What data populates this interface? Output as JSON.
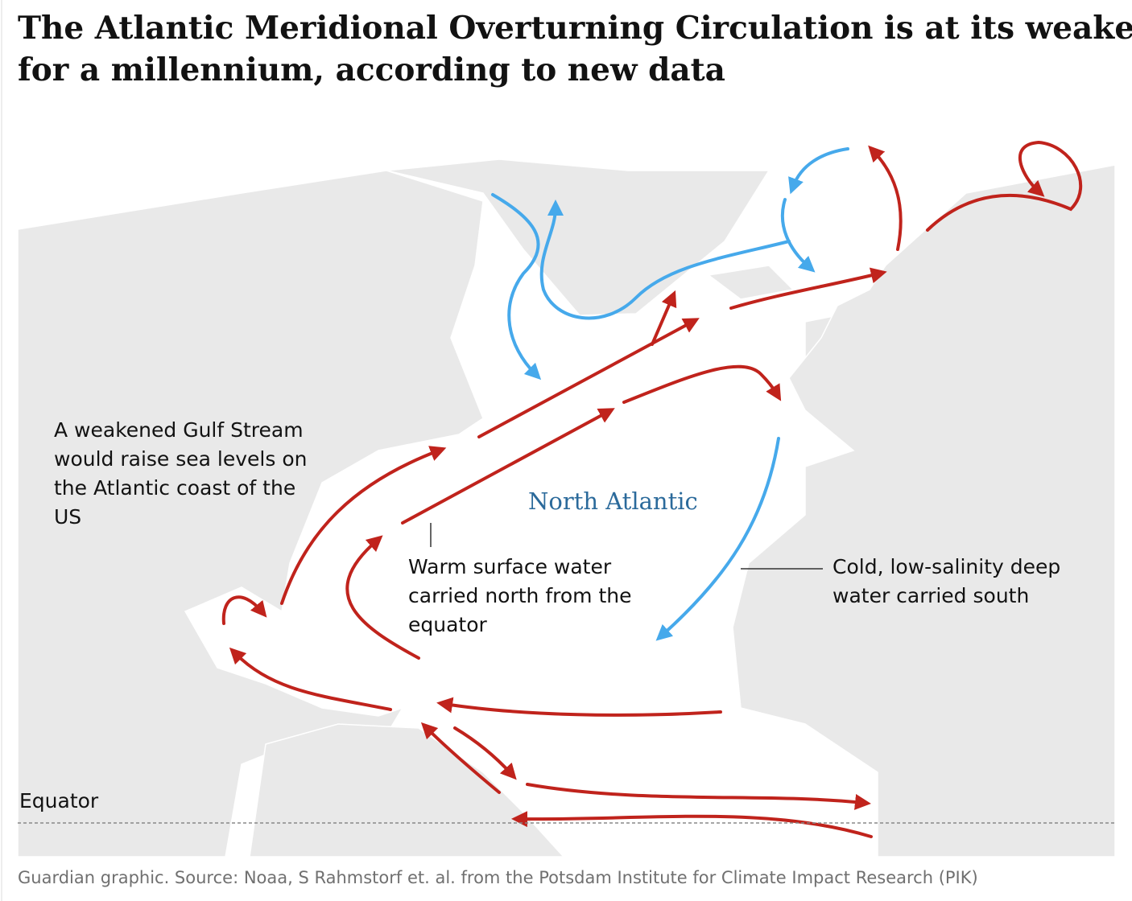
{
  "title": [
    "The Atlantic Meridional Overturning Circulation is at its weakest",
    "for a millennium, according to new data"
  ],
  "ocean_label": "North Atlantic",
  "equator_label": "Equator",
  "annotations": [
    {
      "lines": [
        "A weakened Gulf Stream",
        "would raise sea levels on",
        "the Atlantic coast of the",
        "US"
      ]
    },
    {
      "lines": [
        "Warm surface water",
        "carried north from the",
        "equator"
      ]
    },
    {
      "lines": [
        "Cold, low-salinity deep",
        "water carried south"
      ]
    }
  ],
  "source": "Guardian graphic. Source: Noaa, S Rahmstorf et. al. from the Potsdam Institute for Climate Impact Research (PIK)"
}
